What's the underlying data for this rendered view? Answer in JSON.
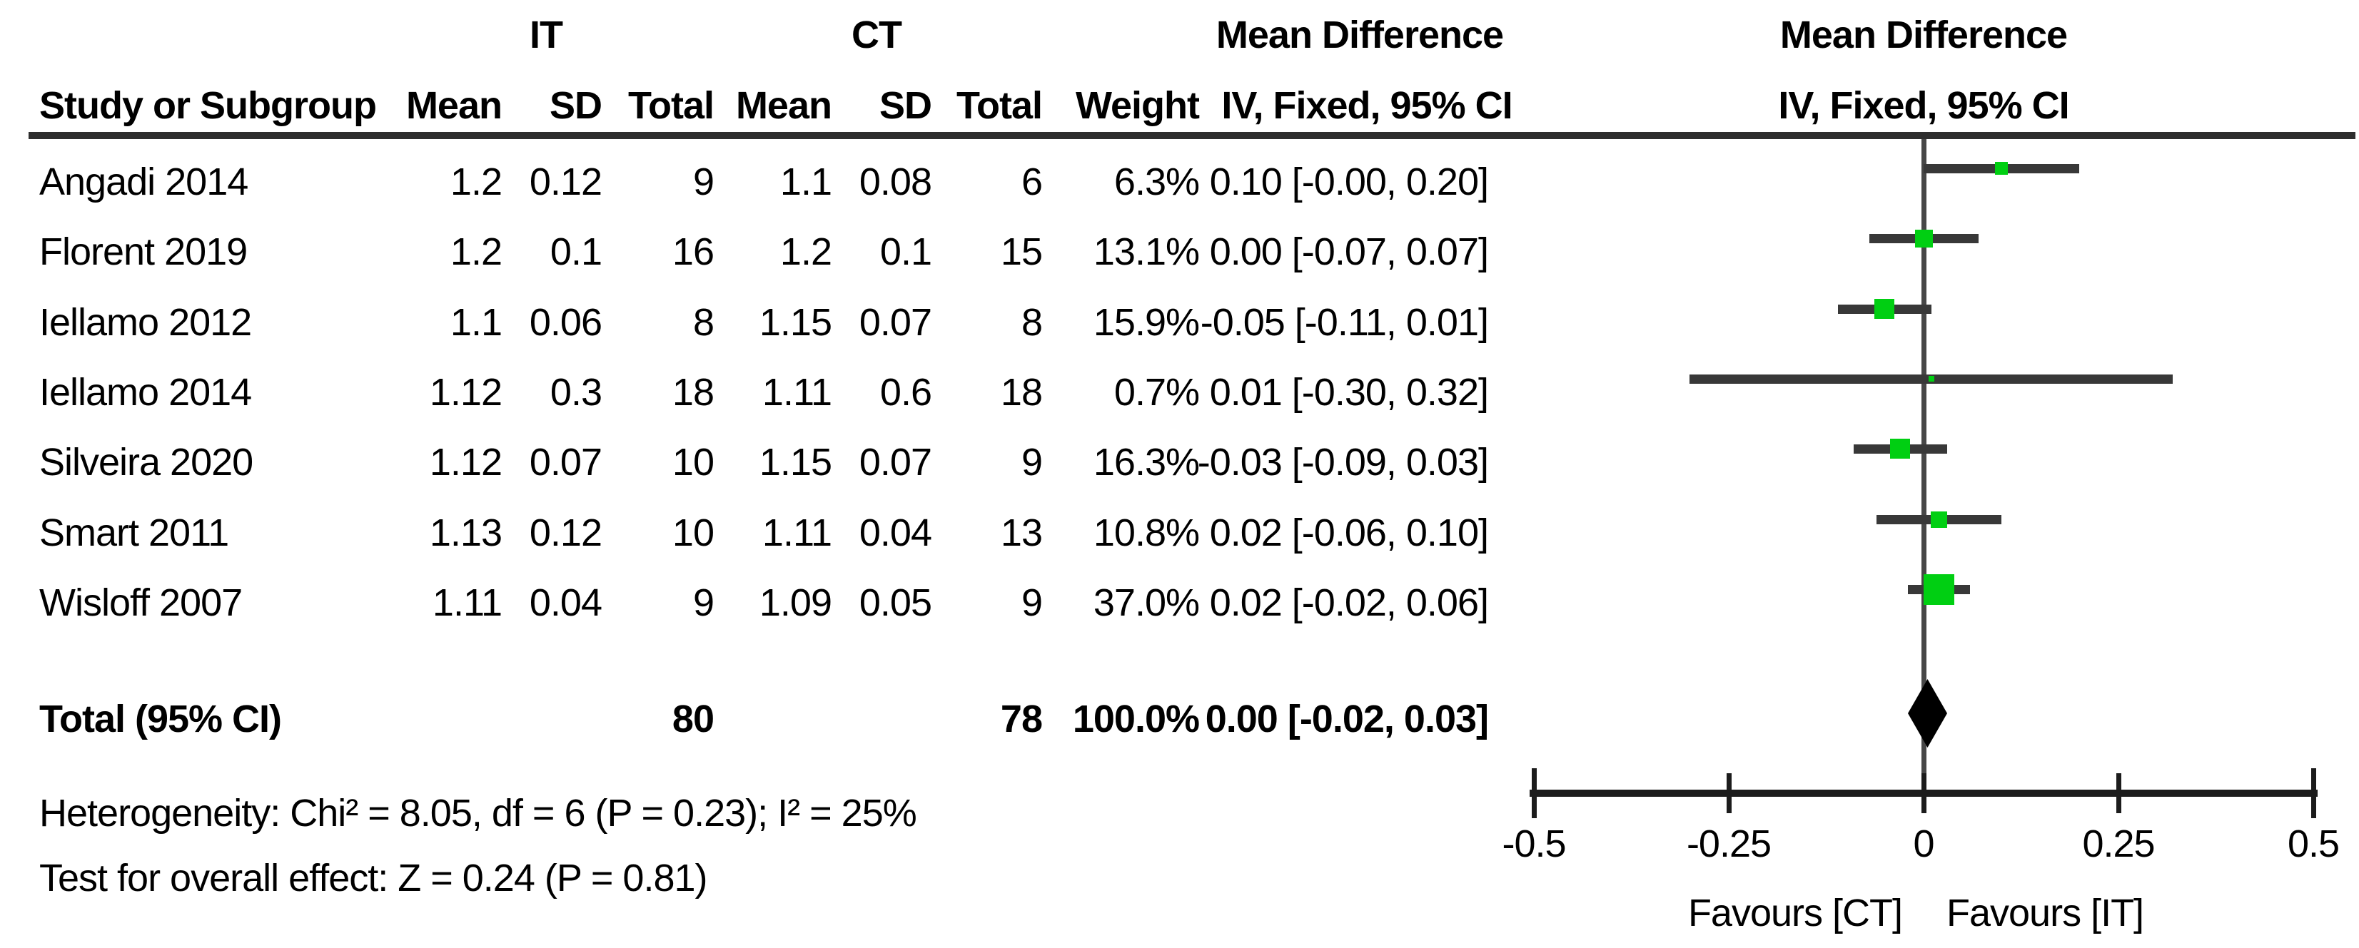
{
  "header": {
    "group_it": "IT",
    "group_ct": "CT",
    "md_table": "Mean Difference",
    "md_plot": "Mean Difference"
  },
  "columns": {
    "study": "Study or Subgroup",
    "it_mean": "Mean",
    "it_sd": "SD",
    "it_total": "Total",
    "ct_mean": "Mean",
    "ct_sd": "SD",
    "ct_total": "Total",
    "weight": "Weight",
    "iv_table": "IV, Fixed, 95% CI",
    "iv_plot": "IV, Fixed, 95% CI"
  },
  "studies": [
    {
      "name": "Angadi 2014",
      "it_mean": "1.2",
      "it_sd": "0.12",
      "it_total": "9",
      "ct_mean": "1.1",
      "ct_sd": "0.08",
      "ct_total": "6",
      "weight": "6.3%",
      "weight_pct": 6.3,
      "ci_text": "0.10 [-0.00, 0.20]",
      "md": 0.1,
      "lo": 0.0,
      "hi": 0.2
    },
    {
      "name": "Florent 2019",
      "it_mean": "1.2",
      "it_sd": "0.1",
      "it_total": "16",
      "ct_mean": "1.2",
      "ct_sd": "0.1",
      "ct_total": "15",
      "weight": "13.1%",
      "weight_pct": 13.1,
      "ci_text": "0.00 [-0.07, 0.07]",
      "md": 0.0,
      "lo": -0.07,
      "hi": 0.07
    },
    {
      "name": "Iellamo 2012",
      "it_mean": "1.1",
      "it_sd": "0.06",
      "it_total": "8",
      "ct_mean": "1.15",
      "ct_sd": "0.07",
      "ct_total": "8",
      "weight": "15.9%",
      "weight_pct": 15.9,
      "ci_text": "-0.05 [-0.11, 0.01]",
      "md": -0.05,
      "lo": -0.11,
      "hi": 0.01
    },
    {
      "name": "Iellamo 2014",
      "it_mean": "1.12",
      "it_sd": "0.3",
      "it_total": "18",
      "ct_mean": "1.11",
      "ct_sd": "0.6",
      "ct_total": "18",
      "weight": "0.7%",
      "weight_pct": 0.7,
      "ci_text": "0.01 [-0.30, 0.32]",
      "md": 0.01,
      "lo": -0.3,
      "hi": 0.32
    },
    {
      "name": "Silveira 2020",
      "it_mean": "1.12",
      "it_sd": "0.07",
      "it_total": "10",
      "ct_mean": "1.15",
      "ct_sd": "0.07",
      "ct_total": "9",
      "weight": "16.3%",
      "weight_pct": 16.3,
      "ci_text": "-0.03 [-0.09, 0.03]",
      "md": -0.03,
      "lo": -0.09,
      "hi": 0.03
    },
    {
      "name": "Smart 2011",
      "it_mean": "1.13",
      "it_sd": "0.12",
      "it_total": "10",
      "ct_mean": "1.11",
      "ct_sd": "0.04",
      "ct_total": "13",
      "weight": "10.8%",
      "weight_pct": 10.8,
      "ci_text": "0.02 [-0.06, 0.10]",
      "md": 0.02,
      "lo": -0.06,
      "hi": 0.1
    },
    {
      "name": "Wisloff 2007",
      "it_mean": "1.11",
      "it_sd": "0.04",
      "it_total": "9",
      "ct_mean": "1.09",
      "ct_sd": "0.05",
      "ct_total": "9",
      "weight": "37.0%",
      "weight_pct": 37.0,
      "ci_text": "0.02 [-0.02, 0.06]",
      "md": 0.02,
      "lo": -0.02,
      "hi": 0.06
    }
  ],
  "total_row": {
    "label": "Total (95% CI)",
    "it_total": "80",
    "ct_total": "78",
    "weight": "100.0%",
    "ci_text": "0.00 [-0.02, 0.03]",
    "md": 0.0,
    "lo": -0.02,
    "hi": 0.03
  },
  "footnotes": {
    "heterogeneity": "Heterogeneity: Chi² = 8.05, df = 6 (P = 0.23); I² = 25%",
    "overall_effect": "Test for overall effect: Z = 0.24 (P = 0.81)"
  },
  "axis": {
    "min": -0.5,
    "max": 0.5,
    "ticks": [
      {
        "value": -0.5,
        "label": "-0.5"
      },
      {
        "value": -0.25,
        "label": "-0.25"
      },
      {
        "value": 0,
        "label": "0"
      },
      {
        "value": 0.25,
        "label": "0.25"
      },
      {
        "value": 0.5,
        "label": "0.5"
      }
    ],
    "favours_left": "Favours [CT]",
    "favours_right": "Favours [IT]"
  },
  "colors": {
    "marker_green": "#00cf12",
    "ci_line": "#383838",
    "diamond": "#000000",
    "axis": "#1c1c1c",
    "text": "#000000"
  },
  "chart_data": {
    "type": "forest",
    "title": "Mean Difference",
    "effect_measure": "IV, Fixed, 95% CI",
    "comparison_groups": [
      "IT",
      "CT"
    ],
    "studies": [
      "Angadi 2014",
      "Florent 2019",
      "Iellamo 2012",
      "Iellamo 2014",
      "Silveira 2020",
      "Smart 2011",
      "Wisloff 2007"
    ],
    "it_mean": [
      1.2,
      1.2,
      1.1,
      1.12,
      1.12,
      1.13,
      1.11
    ],
    "it_sd": [
      0.12,
      0.1,
      0.06,
      0.3,
      0.07,
      0.12,
      0.04
    ],
    "it_total": [
      9,
      16,
      8,
      18,
      10,
      10,
      9
    ],
    "ct_mean": [
      1.1,
      1.2,
      1.15,
      1.11,
      1.15,
      1.11,
      1.09
    ],
    "ct_sd": [
      0.08,
      0.1,
      0.07,
      0.6,
      0.07,
      0.04,
      0.05
    ],
    "ct_total": [
      6,
      15,
      8,
      18,
      9,
      13,
      9
    ],
    "weights_pct": [
      6.3,
      13.1,
      15.9,
      0.7,
      16.3,
      10.8,
      37.0
    ],
    "estimates": [
      0.1,
      0.0,
      -0.05,
      0.01,
      -0.03,
      0.02,
      0.02
    ],
    "ci_low": [
      -0.0,
      -0.07,
      -0.11,
      -0.3,
      -0.09,
      -0.06,
      -0.02
    ],
    "ci_high": [
      0.2,
      0.07,
      0.01,
      0.32,
      0.03,
      0.1,
      0.06
    ],
    "total": {
      "label": "Total (95% CI)",
      "it_total": 80,
      "ct_total": 78,
      "weight_pct": 100.0,
      "estimate": 0.0,
      "ci_low": -0.02,
      "ci_high": 0.03
    },
    "heterogeneity": "Chi² = 8.05, df = 6 (P = 0.23); I² = 25%",
    "overall_effect": "Z = 0.24 (P = 0.81)",
    "xlim": [
      -0.5,
      0.5
    ],
    "xticks": [
      -0.5,
      -0.25,
      0,
      0.25,
      0.5
    ],
    "x_axis_labels_below": [
      "Favours [CT]",
      "Favours [IT]"
    ],
    "grid": false,
    "legend": false
  }
}
